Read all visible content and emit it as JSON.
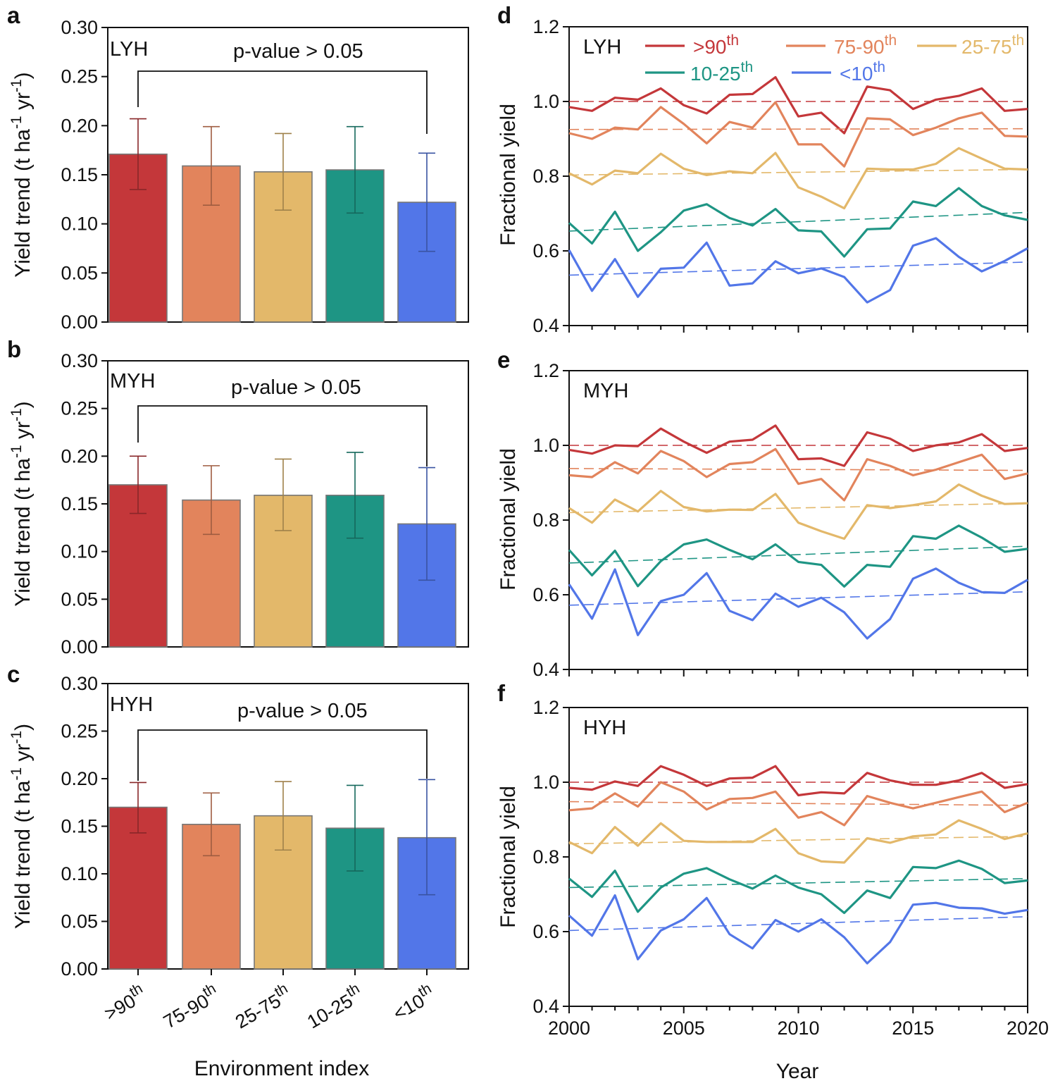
{
  "colors": {
    "gt90": "#c4373a",
    "p75_90": "#e2845c",
    "p25_75": "#e3b86a",
    "p10_25": "#1e9584",
    "lt10": "#5276e8"
  },
  "legend": [
    {
      "key": "gt90",
      "base": ">90",
      "sup": "th"
    },
    {
      "key": "p75_90",
      "base": "75-90",
      "sup": "th"
    },
    {
      "key": "p25_75",
      "base": "25-75",
      "sup": "th"
    },
    {
      "key": "p10_25",
      "base": "10-25",
      "sup": "th"
    },
    {
      "key": "lt10",
      "base": "<10",
      "sup": "th"
    }
  ],
  "bar_ylabel": "Yield trend (t ha-1 yr-1)",
  "bar_xlabel": "Environment index",
  "line_ylabel": "Fractional yield",
  "line_xlabel": "Year",
  "chart_data": [
    {
      "panel": "a",
      "type": "bar",
      "region": "LYH",
      "annotation": "p-value > 0.05",
      "categories": [
        ">90th",
        "75-90th",
        "25-75th",
        "10-25th",
        "<10th"
      ],
      "values": [
        0.171,
        0.159,
        0.153,
        0.155,
        0.122
      ],
      "err_low": [
        0.135,
        0.119,
        0.114,
        0.111,
        0.072
      ],
      "err_high": [
        0.207,
        0.199,
        0.192,
        0.199,
        0.172
      ],
      "ylim": [
        0,
        0.3
      ],
      "yticks": [
        "0.00",
        "0.05",
        "0.10",
        "0.15",
        "0.20",
        "0.25",
        "0.30"
      ]
    },
    {
      "panel": "b",
      "type": "bar",
      "region": "MYH",
      "annotation": "p-value > 0.05",
      "categories": [
        ">90th",
        "75-90th",
        "25-75th",
        "10-25th",
        "<10th"
      ],
      "values": [
        0.17,
        0.154,
        0.159,
        0.159,
        0.129
      ],
      "err_low": [
        0.14,
        0.118,
        0.122,
        0.114,
        0.07
      ],
      "err_high": [
        0.2,
        0.19,
        0.197,
        0.204,
        0.188
      ],
      "ylim": [
        0,
        0.3
      ],
      "yticks": [
        "0.00",
        "0.05",
        "0.10",
        "0.15",
        "0.20",
        "0.25",
        "0.30"
      ]
    },
    {
      "panel": "c",
      "type": "bar",
      "region": "HYH",
      "annotation": "p-value > 0.05",
      "categories": [
        ">90th",
        "75-90th",
        "25-75th",
        "10-25th",
        "<10th"
      ],
      "values": [
        0.17,
        0.152,
        0.161,
        0.148,
        0.138
      ],
      "err_low": [
        0.143,
        0.119,
        0.125,
        0.103,
        0.078
      ],
      "err_high": [
        0.196,
        0.185,
        0.197,
        0.193,
        0.199
      ],
      "ylim": [
        0,
        0.3
      ],
      "yticks": [
        "0.00",
        "0.05",
        "0.10",
        "0.15",
        "0.20",
        "0.25",
        "0.30"
      ]
    },
    {
      "panel": "d",
      "type": "line",
      "region": "LYH",
      "x": [
        2000,
        2001,
        2002,
        2003,
        2004,
        2005,
        2006,
        2007,
        2008,
        2009,
        2010,
        2011,
        2012,
        2013,
        2014,
        2015,
        2016,
        2017,
        2018,
        2019,
        2020
      ],
      "ylim": [
        0.4,
        1.2
      ],
      "yticks": [
        "0.4",
        "0.6",
        "0.8",
        "1.0",
        "1.2"
      ],
      "xticks": [
        "2000",
        "2005",
        "2010",
        "2015",
        "2020"
      ],
      "series": [
        {
          "key": "gt90",
          "name": ">90th",
          "values": [
            0.985,
            0.975,
            1.01,
            1.005,
            1.035,
            0.99,
            0.968,
            1.018,
            1.02,
            1.065,
            0.96,
            0.97,
            0.915,
            1.04,
            1.03,
            0.98,
            1.005,
            1.015,
            1.035,
            0.975,
            0.98
          ],
          "trend": [
            1.0,
            1.0
          ]
        },
        {
          "key": "p75_90",
          "name": "75-90th",
          "values": [
            0.915,
            0.9,
            0.93,
            0.925,
            0.985,
            0.94,
            0.888,
            0.945,
            0.93,
            0.998,
            0.885,
            0.885,
            0.826,
            0.955,
            0.952,
            0.91,
            0.93,
            0.955,
            0.97,
            0.908,
            0.906
          ],
          "trend": [
            0.925,
            0.927
          ]
        },
        {
          "key": "p25_75",
          "name": "25-75th",
          "values": [
            0.808,
            0.778,
            0.815,
            0.808,
            0.86,
            0.82,
            0.803,
            0.813,
            0.808,
            0.862,
            0.77,
            0.745,
            0.714,
            0.82,
            0.818,
            0.818,
            0.833,
            0.875,
            0.847,
            0.82,
            0.818
          ],
          "trend": [
            0.803,
            0.818
          ]
        },
        {
          "key": "p10_25",
          "name": "10-25th",
          "values": [
            0.675,
            0.62,
            0.705,
            0.6,
            0.65,
            0.708,
            0.725,
            0.688,
            0.668,
            0.712,
            0.655,
            0.652,
            0.585,
            0.658,
            0.66,
            0.732,
            0.72,
            0.768,
            0.72,
            0.695,
            0.683
          ],
          "trend": [
            0.653,
            0.703
          ]
        },
        {
          "key": "lt10",
          "name": "<10th",
          "values": [
            0.602,
            0.493,
            0.578,
            0.477,
            0.552,
            0.555,
            0.622,
            0.507,
            0.513,
            0.572,
            0.54,
            0.553,
            0.53,
            0.462,
            0.495,
            0.614,
            0.634,
            0.584,
            0.545,
            0.573,
            0.607
          ],
          "trend": [
            0.535,
            0.57
          ]
        }
      ]
    },
    {
      "panel": "e",
      "type": "line",
      "region": "MYH",
      "x": [
        2000,
        2001,
        2002,
        2003,
        2004,
        2005,
        2006,
        2007,
        2008,
        2009,
        2010,
        2011,
        2012,
        2013,
        2014,
        2015,
        2016,
        2017,
        2018,
        2019,
        2020
      ],
      "ylim": [
        0.4,
        1.2
      ],
      "yticks": [
        "0.4",
        "0.6",
        "0.8",
        "1.0",
        "1.2"
      ],
      "xticks": [
        "2000",
        "2005",
        "2010",
        "2015",
        "2020"
      ],
      "series": [
        {
          "key": "gt90",
          "name": ">90th",
          "values": [
            0.988,
            0.978,
            1.0,
            0.998,
            1.045,
            1.01,
            0.98,
            1.01,
            1.015,
            1.053,
            0.963,
            0.965,
            0.945,
            1.035,
            1.018,
            0.985,
            1.0,
            1.008,
            1.03,
            0.985,
            0.993
          ],
          "trend": [
            1.0,
            1.0
          ]
        },
        {
          "key": "p75_90",
          "name": "75-90th",
          "values": [
            0.92,
            0.915,
            0.955,
            0.925,
            0.985,
            0.958,
            0.915,
            0.95,
            0.955,
            0.99,
            0.897,
            0.91,
            0.853,
            0.963,
            0.945,
            0.92,
            0.935,
            0.955,
            0.975,
            0.91,
            0.925
          ],
          "trend": [
            0.938,
            0.933
          ]
        },
        {
          "key": "p25_75",
          "name": "25-75th",
          "values": [
            0.832,
            0.793,
            0.855,
            0.823,
            0.878,
            0.835,
            0.823,
            0.828,
            0.827,
            0.87,
            0.793,
            0.77,
            0.75,
            0.84,
            0.832,
            0.84,
            0.85,
            0.895,
            0.865,
            0.843,
            0.845
          ],
          "trend": [
            0.82,
            0.845
          ]
        },
        {
          "key": "p10_25",
          "name": "10-25th",
          "values": [
            0.72,
            0.652,
            0.718,
            0.623,
            0.69,
            0.735,
            0.748,
            0.72,
            0.695,
            0.735,
            0.688,
            0.68,
            0.622,
            0.68,
            0.675,
            0.757,
            0.75,
            0.785,
            0.753,
            0.715,
            0.723
          ],
          "trend": [
            0.685,
            0.73
          ]
        },
        {
          "key": "lt10",
          "name": "<10th",
          "values": [
            0.628,
            0.536,
            0.668,
            0.492,
            0.583,
            0.6,
            0.658,
            0.557,
            0.532,
            0.603,
            0.568,
            0.592,
            0.553,
            0.483,
            0.535,
            0.643,
            0.67,
            0.632,
            0.607,
            0.605,
            0.64
          ],
          "trend": [
            0.572,
            0.608
          ]
        }
      ]
    },
    {
      "panel": "f",
      "type": "line",
      "region": "HYH",
      "x": [
        2000,
        2001,
        2002,
        2003,
        2004,
        2005,
        2006,
        2007,
        2008,
        2009,
        2010,
        2011,
        2012,
        2013,
        2014,
        2015,
        2016,
        2017,
        2018,
        2019,
        2020
      ],
      "ylim": [
        0.4,
        1.2
      ],
      "yticks": [
        "0.4",
        "0.6",
        "0.8",
        "1.0",
        "1.2"
      ],
      "xticks": [
        "2000",
        "2005",
        "2010",
        "2015",
        "2020"
      ],
      "series": [
        {
          "key": "gt90",
          "name": ">90th",
          "values": [
            0.985,
            0.98,
            1.002,
            0.99,
            1.043,
            1.02,
            0.99,
            1.01,
            1.012,
            1.043,
            0.965,
            0.973,
            0.97,
            1.025,
            1.005,
            0.993,
            0.993,
            1.005,
            1.025,
            0.985,
            0.995
          ],
          "trend": [
            1.0,
            1.0
          ]
        },
        {
          "key": "p75_90",
          "name": "75-90th",
          "values": [
            0.925,
            0.93,
            0.97,
            0.935,
            1.0,
            0.975,
            0.927,
            0.955,
            0.958,
            0.975,
            0.905,
            0.92,
            0.885,
            0.963,
            0.945,
            0.93,
            0.945,
            0.96,
            0.975,
            0.92,
            0.945
          ],
          "trend": [
            0.948,
            0.938
          ]
        },
        {
          "key": "p25_75",
          "name": "25-75th",
          "values": [
            0.84,
            0.81,
            0.88,
            0.83,
            0.89,
            0.843,
            0.84,
            0.84,
            0.84,
            0.875,
            0.81,
            0.788,
            0.785,
            0.85,
            0.838,
            0.855,
            0.86,
            0.898,
            0.875,
            0.848,
            0.863
          ],
          "trend": [
            0.835,
            0.855
          ]
        },
        {
          "key": "p10_25",
          "name": "10-25th",
          "values": [
            0.742,
            0.693,
            0.763,
            0.653,
            0.718,
            0.755,
            0.77,
            0.74,
            0.715,
            0.75,
            0.718,
            0.7,
            0.65,
            0.71,
            0.69,
            0.773,
            0.77,
            0.79,
            0.768,
            0.73,
            0.737
          ],
          "trend": [
            0.718,
            0.742
          ]
        },
        {
          "key": "lt10",
          "name": "<10th",
          "values": [
            0.643,
            0.589,
            0.697,
            0.526,
            0.603,
            0.633,
            0.69,
            0.593,
            0.555,
            0.631,
            0.6,
            0.633,
            0.585,
            0.515,
            0.572,
            0.672,
            0.677,
            0.664,
            0.662,
            0.648,
            0.658
          ],
          "trend": [
            0.603,
            0.64
          ]
        }
      ]
    }
  ]
}
